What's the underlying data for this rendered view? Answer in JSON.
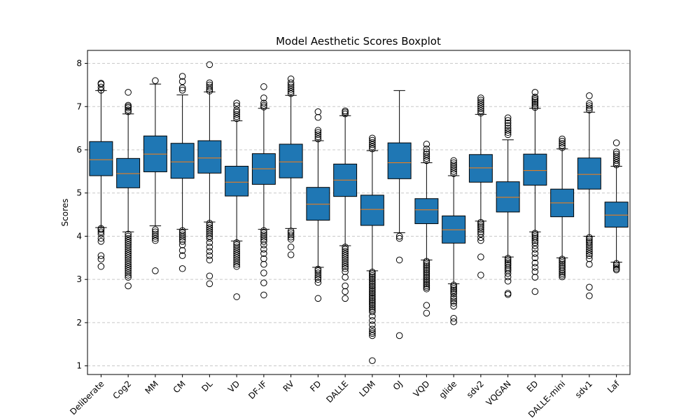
{
  "chart_data": {
    "type": "boxplot",
    "title": "Model Aesthetic Scores Boxplot",
    "xlabel": "",
    "ylabel": "Scores",
    "ylim": [
      0.8,
      8.3
    ],
    "yticks": [
      1,
      2,
      3,
      4,
      5,
      6,
      7,
      8
    ],
    "grid": "y-dashed",
    "colors": {
      "box_fill": "#1f77b4",
      "median": "#ff7f0e",
      "grid": "#c8c8c8",
      "flier": "#000000"
    },
    "categories": [
      "Deliberate",
      "Cog2",
      "MM",
      "CM",
      "DL",
      "VD",
      "DF-IF",
      "RV",
      "FD",
      "DALLE",
      "LDM",
      "OJ",
      "VQD",
      "glide",
      "sdv2",
      "VQGAN",
      "ED",
      "DALLE-mini",
      "sdv1",
      "Laf"
    ],
    "boxes": [
      {
        "label": "Deliberate",
        "whislo": 4.2,
        "q1": 5.4,
        "med": 5.77,
        "q3": 6.19,
        "whishi": 7.37,
        "fliers": [
          4.18,
          4.15,
          4.1,
          4.05,
          3.95,
          3.88,
          3.55,
          3.47,
          3.3,
          7.38,
          7.45,
          7.52,
          7.54
        ]
      },
      {
        "label": "Cog2",
        "whislo": 4.1,
        "q1": 5.12,
        "med": 5.45,
        "q3": 5.8,
        "whishi": 6.83,
        "fliers": [
          4.05,
          4.0,
          3.95,
          3.9,
          3.85,
          3.8,
          3.75,
          3.7,
          3.65,
          3.6,
          3.55,
          3.5,
          3.45,
          3.4,
          3.35,
          3.3,
          3.25,
          3.2,
          3.15,
          3.1,
          3.05,
          2.85,
          6.88,
          6.92,
          6.97,
          7.0,
          7.03,
          7.33
        ]
      },
      {
        "label": "MM",
        "whislo": 4.24,
        "q1": 5.49,
        "med": 5.9,
        "q3": 6.32,
        "whishi": 7.52,
        "fliers": [
          4.15,
          4.1,
          4.05,
          4.0,
          3.95,
          3.9,
          3.2,
          7.6
        ]
      },
      {
        "label": "CM",
        "whislo": 4.16,
        "q1": 5.34,
        "med": 5.72,
        "q3": 6.15,
        "whishi": 7.27,
        "fliers": [
          4.13,
          4.08,
          4.03,
          3.98,
          3.93,
          3.88,
          3.8,
          3.67,
          3.55,
          3.25,
          7.38,
          7.43,
          7.58,
          7.7
        ]
      },
      {
        "label": "DL",
        "whislo": 4.33,
        "q1": 5.46,
        "med": 5.81,
        "q3": 6.21,
        "whishi": 7.34,
        "fliers": [
          4.3,
          4.25,
          4.2,
          4.15,
          4.1,
          4.05,
          4.0,
          3.95,
          3.85,
          3.75,
          3.65,
          3.55,
          3.45,
          3.08,
          2.9,
          7.36,
          7.4,
          7.45,
          7.5,
          7.55,
          7.97
        ]
      },
      {
        "label": "VD",
        "whislo": 3.89,
        "q1": 4.93,
        "med": 5.25,
        "q3": 5.62,
        "whishi": 6.67,
        "fliers": [
          3.85,
          3.8,
          3.75,
          3.7,
          3.65,
          3.6,
          3.55,
          3.5,
          3.45,
          3.4,
          3.35,
          3.3,
          2.6,
          6.72,
          6.77,
          6.82,
          6.87,
          6.92,
          7.02,
          7.08
        ]
      },
      {
        "label": "DF-IF",
        "whislo": 4.16,
        "q1": 5.2,
        "med": 5.56,
        "q3": 5.91,
        "whishi": 6.96,
        "fliers": [
          4.13,
          4.08,
          4.03,
          3.98,
          3.93,
          3.88,
          3.8,
          3.7,
          3.6,
          3.48,
          3.35,
          3.15,
          2.92,
          2.64,
          6.99,
          7.03,
          7.08,
          7.2,
          7.46
        ]
      },
      {
        "label": "RV",
        "whislo": 4.18,
        "q1": 5.35,
        "med": 5.72,
        "q3": 6.13,
        "whishi": 7.26,
        "fliers": [
          4.12,
          4.08,
          4.03,
          3.98,
          3.93,
          3.75,
          3.57,
          7.3,
          7.35,
          7.4,
          7.45,
          7.5,
          7.55,
          7.64
        ]
      },
      {
        "label": "FD",
        "whislo": 3.28,
        "q1": 4.37,
        "med": 4.74,
        "q3": 5.13,
        "whishi": 6.21,
        "fliers": [
          3.24,
          3.2,
          3.15,
          3.1,
          3.05,
          3.0,
          2.93,
          2.56,
          6.25,
          6.3,
          6.35,
          6.4,
          6.45,
          6.75,
          6.88
        ]
      },
      {
        "label": "DALLE",
        "whislo": 3.78,
        "q1": 4.92,
        "med": 5.3,
        "q3": 5.67,
        "whishi": 6.79,
        "fliers": [
          3.75,
          3.7,
          3.65,
          3.6,
          3.55,
          3.5,
          3.45,
          3.4,
          3.35,
          3.3,
          3.25,
          3.18,
          3.05,
          2.85,
          2.72,
          2.56,
          6.83,
          6.87,
          6.9
        ]
      },
      {
        "label": "LDM",
        "whislo": 3.2,
        "q1": 4.25,
        "med": 4.62,
        "q3": 4.95,
        "whishi": 5.98,
        "fliers": [
          3.17,
          3.13,
          3.09,
          3.05,
          3.01,
          2.97,
          2.93,
          2.89,
          2.85,
          2.81,
          2.77,
          2.73,
          2.69,
          2.65,
          2.61,
          2.57,
          2.53,
          2.49,
          2.45,
          2.41,
          2.37,
          2.33,
          2.29,
          2.25,
          2.15,
          2.05,
          1.95,
          1.85,
          1.79,
          1.75,
          1.7,
          1.12,
          6.02,
          6.07,
          6.12,
          6.17,
          6.22,
          6.27
        ]
      },
      {
        "label": "OJ",
        "whislo": 4.08,
        "q1": 5.33,
        "med": 5.7,
        "q3": 6.16,
        "whishi": 7.37,
        "fliers": [
          4.0,
          3.95,
          3.45,
          1.7
        ]
      },
      {
        "label": "VQD",
        "whislo": 3.45,
        "q1": 4.29,
        "med": 4.61,
        "q3": 4.87,
        "whishi": 5.7,
        "fliers": [
          3.42,
          3.38,
          3.34,
          3.3,
          3.26,
          3.22,
          3.18,
          3.14,
          3.1,
          3.06,
          3.02,
          2.98,
          2.94,
          2.9,
          2.86,
          2.82,
          2.78,
          2.4,
          2.22,
          5.75,
          5.8,
          5.85,
          5.9,
          5.95,
          6.02,
          6.13
        ]
      },
      {
        "label": "glide",
        "whislo": 2.9,
        "q1": 3.84,
        "med": 4.15,
        "q3": 4.47,
        "whishi": 5.4,
        "fliers": [
          2.87,
          2.83,
          2.79,
          2.75,
          2.71,
          2.67,
          2.6,
          2.55,
          2.5,
          2.45,
          2.38,
          2.1,
          2.02,
          5.45,
          5.5,
          5.55,
          5.6,
          5.65,
          5.7,
          5.75
        ]
      },
      {
        "label": "sdv2",
        "whislo": 4.35,
        "q1": 5.25,
        "med": 5.58,
        "q3": 5.89,
        "whishi": 6.82,
        "fliers": [
          4.32,
          4.28,
          4.24,
          4.2,
          4.15,
          4.1,
          4.05,
          3.97,
          3.9,
          3.52,
          3.1,
          6.85,
          6.9,
          6.95,
          7.0,
          7.05,
          7.1,
          7.15,
          7.2
        ]
      },
      {
        "label": "VQGAN",
        "whislo": 3.52,
        "q1": 4.56,
        "med": 4.9,
        "q3": 5.26,
        "whishi": 6.23,
        "fliers": [
          3.49,
          3.45,
          3.41,
          3.37,
          3.33,
          3.28,
          3.24,
          3.2,
          3.14,
          3.06,
          2.96,
          2.68,
          2.65,
          6.35,
          6.4,
          6.45,
          6.5,
          6.56,
          6.62,
          6.68,
          6.74
        ]
      },
      {
        "label": "ED",
        "whislo": 4.1,
        "q1": 5.18,
        "med": 5.52,
        "q3": 5.9,
        "whishi": 6.96,
        "fliers": [
          4.07,
          4.03,
          3.99,
          3.95,
          3.9,
          3.85,
          3.78,
          3.7,
          3.6,
          3.5,
          3.38,
          3.28,
          3.18,
          3.05,
          2.72,
          6.98,
          7.02,
          7.06,
          7.1,
          7.14,
          7.18,
          7.22,
          7.33
        ]
      },
      {
        "label": "DALLE-mini",
        "whislo": 3.5,
        "q1": 4.45,
        "med": 4.77,
        "q3": 5.09,
        "whishi": 6.02,
        "fliers": [
          3.47,
          3.43,
          3.39,
          3.35,
          3.31,
          3.27,
          3.22,
          3.18,
          3.14,
          3.1,
          3.06,
          6.05,
          6.1,
          6.15,
          6.2,
          6.25
        ]
      },
      {
        "label": "sdv1",
        "whislo": 4.0,
        "q1": 5.09,
        "med": 5.43,
        "q3": 5.81,
        "whishi": 6.87,
        "fliers": [
          3.97,
          3.93,
          3.89,
          3.85,
          3.8,
          3.75,
          3.7,
          3.65,
          3.6,
          3.55,
          3.48,
          3.35,
          2.82,
          2.62,
          6.92,
          6.97,
          7.02,
          7.07,
          7.25
        ]
      },
      {
        "label": "Laf",
        "whislo": 3.4,
        "q1": 4.21,
        "med": 4.49,
        "q3": 4.79,
        "whishi": 5.62,
        "fliers": [
          3.37,
          3.33,
          3.29,
          3.25,
          3.22,
          5.65,
          5.7,
          5.75,
          5.8,
          5.85,
          5.9,
          5.95,
          6.16
        ]
      }
    ]
  }
}
